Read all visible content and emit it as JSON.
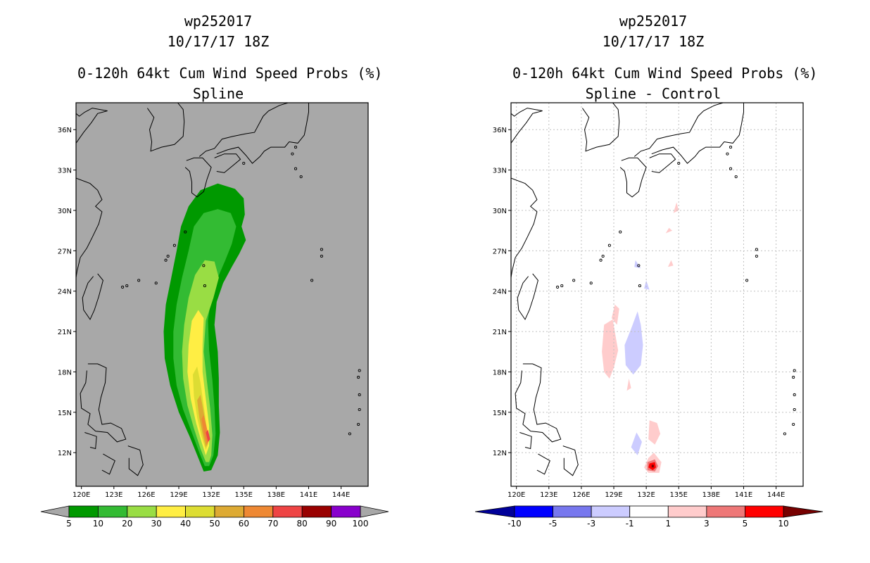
{
  "panels": [
    {
      "storm_id": "wp252017",
      "datetime": "10/17/17 18Z",
      "product": "0-120h 64kt Cum Wind Speed Probs (%)",
      "subtitle": "Spline"
    },
    {
      "storm_id": "wp252017",
      "datetime": "10/17/17 18Z",
      "product": "0-120h 64kt Cum Wind Speed Probs (%)",
      "subtitle": "Spline - Control"
    }
  ],
  "colors": {
    "land_bg": "#a8a8a8",
    "white_bg": "#ffffff",
    "coast": "#000000",
    "grid": "#c0c0c0"
  },
  "chart_data": [
    {
      "type": "heatmap",
      "title": "0-120h 64kt Cum Wind Speed Probs (%) Spline",
      "xlim": [
        119.5,
        146.5
      ],
      "ylim": [
        9.5,
        38.0
      ],
      "x_ticks": [
        120,
        123,
        126,
        129,
        132,
        135,
        138,
        141,
        144
      ],
      "x_tick_labels": [
        "120E",
        "123E",
        "126E",
        "129E",
        "132E",
        "135E",
        "138E",
        "141E",
        "144E"
      ],
      "y_ticks": [
        12,
        15,
        18,
        21,
        24,
        27,
        30,
        33,
        36
      ],
      "y_tick_labels": [
        "12N",
        "15N",
        "18N",
        "21N",
        "24N",
        "27N",
        "30N",
        "33N",
        "36N"
      ],
      "grid": false,
      "colorbar": {
        "labels": [
          "5",
          "10",
          "20",
          "30",
          "40",
          "50",
          "60",
          "70",
          "80",
          "90",
          "100"
        ],
        "colors": [
          "#009900",
          "#33bb33",
          "#99dd44",
          "#ffee44",
          "#dddd33",
          "#ddaa33",
          "#ee8833",
          "#ee4444",
          "#990000",
          "#8800cc"
        ],
        "end_colors": [
          "#a8a8a8",
          "#a8a8a8"
        ]
      },
      "contours": [
        {
          "level": 5,
          "color": "#009900",
          "lonlat": [
            [
              131.3,
              10.6
            ],
            [
              130.8,
              11.6
            ],
            [
              130.0,
              13.2
            ],
            [
              129.0,
              15.0
            ],
            [
              128.2,
              17.0
            ],
            [
              127.7,
              19.0
            ],
            [
              127.6,
              21.0
            ],
            [
              127.8,
              23.0
            ],
            [
              128.3,
              25.0
            ],
            [
              128.8,
              27.0
            ],
            [
              129.2,
              28.8
            ],
            [
              129.9,
              30.3
            ],
            [
              131.0,
              31.5
            ],
            [
              132.6,
              32.0
            ],
            [
              134.2,
              31.6
            ],
            [
              135.0,
              30.9
            ],
            [
              135.1,
              29.7
            ],
            [
              134.8,
              28.8
            ],
            [
              135.2,
              27.8
            ],
            [
              134.6,
              26.8
            ],
            [
              133.9,
              25.8
            ],
            [
              133.1,
              24.6
            ],
            [
              132.5,
              23.2
            ],
            [
              132.3,
              21.5
            ],
            [
              132.6,
              19.5
            ],
            [
              132.7,
              17.5
            ],
            [
              132.7,
              15.5
            ],
            [
              132.8,
              13.5
            ],
            [
              132.6,
              11.8
            ],
            [
              132.0,
              10.7
            ]
          ]
        },
        {
          "level": 10,
          "color": "#33bb33",
          "lonlat": [
            [
              131.4,
              11.0
            ],
            [
              130.9,
              12.0
            ],
            [
              130.2,
              13.5
            ],
            [
              129.4,
              15.2
            ],
            [
              128.8,
              17.0
            ],
            [
              128.5,
              19.0
            ],
            [
              128.5,
              21.0
            ],
            [
              128.8,
              23.0
            ],
            [
              129.3,
              25.0
            ],
            [
              129.9,
              27.0
            ],
            [
              130.4,
              28.8
            ],
            [
              131.3,
              29.8
            ],
            [
              132.6,
              30.1
            ],
            [
              133.8,
              29.8
            ],
            [
              134.3,
              28.8
            ],
            [
              133.9,
              27.5
            ],
            [
              133.3,
              26.3
            ],
            [
              132.6,
              25.0
            ],
            [
              132.0,
              23.6
            ],
            [
              131.7,
              21.8
            ],
            [
              131.8,
              19.6
            ],
            [
              132.1,
              17.4
            ],
            [
              132.3,
              15.4
            ],
            [
              132.4,
              13.4
            ],
            [
              132.2,
              11.8
            ],
            [
              131.8,
              11.0
            ]
          ]
        },
        {
          "level": 20,
          "color": "#99dd44",
          "lonlat": [
            [
              131.5,
              11.3
            ],
            [
              131.0,
              12.3
            ],
            [
              130.4,
              13.8
            ],
            [
              129.8,
              15.5
            ],
            [
              129.4,
              17.5
            ],
            [
              129.3,
              19.5
            ],
            [
              129.5,
              21.5
            ],
            [
              129.9,
              23.5
            ],
            [
              130.5,
              25.2
            ],
            [
              131.4,
              26.3
            ],
            [
              132.3,
              26.2
            ],
            [
              132.7,
              25.0
            ],
            [
              132.2,
              23.5
            ],
            [
              131.5,
              21.8
            ],
            [
              131.3,
              19.5
            ],
            [
              131.6,
              17.3
            ],
            [
              131.9,
              15.3
            ],
            [
              132.1,
              13.3
            ],
            [
              132.0,
              11.8
            ],
            [
              131.8,
              11.3
            ]
          ]
        },
        {
          "level": 30,
          "color": "#ffee44",
          "lonlat": [
            [
              131.5,
              11.8
            ],
            [
              131.1,
              12.8
            ],
            [
              130.6,
              14.2
            ],
            [
              130.1,
              16.0
            ],
            [
              129.8,
              18.0
            ],
            [
              129.9,
              20.0
            ],
            [
              130.2,
              21.8
            ],
            [
              130.8,
              22.6
            ],
            [
              131.3,
              22.0
            ],
            [
              131.2,
              20.0
            ],
            [
              131.2,
              18.0
            ],
            [
              131.5,
              16.0
            ],
            [
              131.8,
              14.0
            ],
            [
              131.8,
              12.5
            ]
          ]
        },
        {
          "level": 40,
          "color": "#dddd33",
          "lonlat": [
            [
              131.5,
              12.2
            ],
            [
              131.1,
              13.2
            ],
            [
              130.7,
              14.6
            ],
            [
              130.4,
              16.2
            ],
            [
              130.3,
              17.8
            ],
            [
              130.7,
              18.4
            ],
            [
              131.0,
              17.2
            ],
            [
              131.3,
              15.5
            ],
            [
              131.6,
              13.8
            ],
            [
              131.7,
              12.6
            ]
          ]
        },
        {
          "level": 50,
          "color": "#ddaa33",
          "lonlat": [
            [
              131.5,
              12.4
            ],
            [
              131.2,
              13.4
            ],
            [
              130.9,
              14.6
            ],
            [
              130.7,
              15.9
            ],
            [
              131.0,
              16.3
            ],
            [
              131.3,
              15.0
            ],
            [
              131.6,
              13.6
            ],
            [
              131.7,
              12.7
            ]
          ]
        },
        {
          "level": 60,
          "color": "#ee8833",
          "lonlat": [
            [
              131.6,
              12.6
            ],
            [
              131.3,
              13.5
            ],
            [
              131.1,
              14.5
            ],
            [
              131.3,
              14.8
            ],
            [
              131.6,
              13.8
            ],
            [
              131.8,
              12.9
            ]
          ]
        },
        {
          "level": 70,
          "color": "#ee4444",
          "lonlat": [
            [
              131.7,
              12.8
            ],
            [
              131.5,
              13.5
            ],
            [
              131.7,
              13.7
            ],
            [
              131.9,
              13.0
            ]
          ]
        }
      ]
    },
    {
      "type": "heatmap",
      "title": "0-120h 64kt Cum Wind Speed Probs (%) Spline - Control",
      "xlim": [
        119.5,
        146.5
      ],
      "ylim": [
        9.5,
        38.0
      ],
      "x_ticks": [
        120,
        123,
        126,
        129,
        132,
        135,
        138,
        141,
        144
      ],
      "x_tick_labels": [
        "120E",
        "123E",
        "126E",
        "129E",
        "132E",
        "135E",
        "138E",
        "141E",
        "144E"
      ],
      "y_ticks": [
        12,
        15,
        18,
        21,
        24,
        27,
        30,
        33,
        36
      ],
      "y_tick_labels": [
        "12N",
        "15N",
        "18N",
        "21N",
        "24N",
        "27N",
        "30N",
        "33N",
        "36N"
      ],
      "grid": true,
      "colorbar": {
        "labels": [
          "-10",
          "-5",
          "-3",
          "-1",
          "1",
          "3",
          "5",
          "10"
        ],
        "colors": [
          "#0000ff",
          "#7777ee",
          "#ccccff",
          "#ffffff",
          "#ffcccc",
          "#ee7777",
          "#ff0000"
        ],
        "end_colors": [
          "#000099",
          "#770000"
        ]
      },
      "contours": [
        {
          "color": "#ffcccc",
          "lonlat": [
            [
              128.1,
              21.5
            ],
            [
              128.9,
              21.9
            ],
            [
              129.2,
              20.5
            ],
            [
              129.4,
              19.6
            ],
            [
              129.0,
              18.3
            ],
            [
              128.6,
              17.5
            ],
            [
              128.1,
              18.0
            ],
            [
              127.9,
              19.5
            ]
          ]
        },
        {
          "color": "#ffcccc",
          "lonlat": [
            [
              128.8,
              22.0
            ],
            [
              129.1,
              23.0
            ],
            [
              129.5,
              22.7
            ],
            [
              129.3,
              21.5
            ]
          ]
        },
        {
          "color": "#ccccff",
          "lonlat": [
            [
              131.2,
              22.5
            ],
            [
              130.6,
              21.2
            ],
            [
              130.0,
              20.0
            ],
            [
              130.1,
              18.5
            ],
            [
              130.8,
              17.8
            ],
            [
              131.5,
              18.5
            ],
            [
              131.7,
              20.0
            ],
            [
              131.5,
              21.5
            ]
          ]
        },
        {
          "color": "#ccccff",
          "lonlat": [
            [
              132.0,
              24.8
            ],
            [
              131.8,
              24.2
            ],
            [
              132.3,
              24.1
            ]
          ]
        },
        {
          "color": "#ccccff",
          "lonlat": [
            [
              131.0,
              26.3
            ],
            [
              130.9,
              25.8
            ],
            [
              131.5,
              25.7
            ]
          ]
        },
        {
          "color": "#ffcccc",
          "lonlat": [
            [
              130.4,
              17.5
            ],
            [
              130.2,
              16.6
            ],
            [
              130.6,
              16.8
            ]
          ]
        },
        {
          "color": "#ffcccc",
          "lonlat": [
            [
              134.8,
              30.6
            ],
            [
              134.5,
              29.8
            ],
            [
              135.0,
              30.0
            ]
          ]
        },
        {
          "color": "#ffcccc",
          "lonlat": [
            [
              134.1,
              28.7
            ],
            [
              133.8,
              28.3
            ],
            [
              134.4,
              28.5
            ]
          ]
        },
        {
          "color": "#ffcccc",
          "lonlat": [
            [
              134.3,
              26.3
            ],
            [
              134.0,
              25.8
            ],
            [
              134.5,
              25.9
            ]
          ]
        },
        {
          "color": "#ffcccc",
          "lonlat": [
            [
              132.3,
              14.4
            ],
            [
              132.2,
              13.0
            ],
            [
              132.8,
              12.6
            ],
            [
              133.3,
              13.4
            ],
            [
              133.0,
              14.2
            ]
          ]
        },
        {
          "color": "#ccccff",
          "lonlat": [
            [
              131.1,
              13.5
            ],
            [
              130.6,
              12.4
            ],
            [
              131.2,
              11.8
            ],
            [
              131.6,
              12.8
            ]
          ]
        },
        {
          "color": "#ffcccc",
          "lonlat": [
            [
              132.2,
              11.6
            ],
            [
              132.7,
              12.0
            ],
            [
              133.4,
              11.3
            ],
            [
              133.2,
              10.5
            ],
            [
              132.2,
              10.5
            ],
            [
              131.8,
              10.9
            ]
          ]
        },
        {
          "color": "#ee7777",
          "lonlat": [
            [
              132.1,
              11.3
            ],
            [
              132.8,
              11.5
            ],
            [
              133.1,
              11.0
            ],
            [
              132.8,
              10.6
            ],
            [
              132.1,
              10.7
            ]
          ]
        },
        {
          "color": "#ff0000",
          "lonlat": [
            [
              132.3,
              11.2
            ],
            [
              132.8,
              11.3
            ],
            [
              132.9,
              10.9
            ],
            [
              132.6,
              10.7
            ],
            [
              132.2,
              10.9
            ]
          ]
        },
        {
          "color": "#770000",
          "lonlat": [
            [
              132.5,
              11.1
            ],
            [
              132.7,
              11.1
            ],
            [
              132.7,
              10.9
            ],
            [
              132.5,
              10.9
            ]
          ]
        }
      ]
    }
  ]
}
